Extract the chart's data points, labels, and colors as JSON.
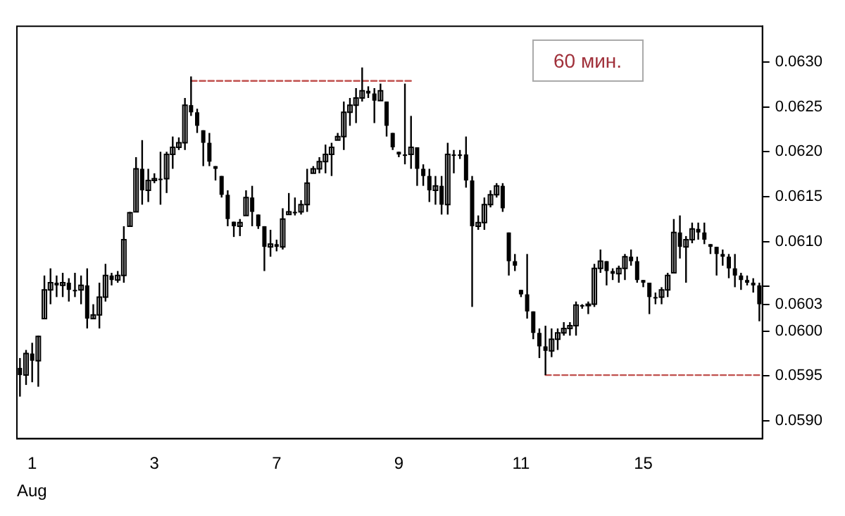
{
  "chart_data": {
    "type": "candlestick",
    "title": "60 мин.",
    "xlabel": "Aug",
    "color": "#000000",
    "categories": [
      null,
      null,
      "1",
      null,
      null,
      null,
      null,
      null,
      null,
      null,
      null,
      null,
      null,
      null,
      null,
      null,
      null,
      null,
      null,
      null,
      null,
      null,
      "3",
      null,
      null,
      null,
      null,
      null,
      null,
      null,
      null,
      null,
      null,
      null,
      null,
      null,
      null,
      null,
      null,
      null,
      null,
      null,
      "7",
      null,
      null,
      null,
      null,
      null,
      null,
      null,
      null,
      null,
      null,
      null,
      null,
      null,
      null,
      null,
      null,
      null,
      null,
      null,
      "9",
      null,
      null,
      null,
      null,
      null,
      null,
      null,
      null,
      null,
      null,
      null,
      null,
      null,
      null,
      null,
      null,
      null,
      null,
      null,
      "11",
      null,
      null,
      null,
      null,
      null,
      null,
      null,
      null,
      null,
      null,
      null,
      null,
      null,
      null,
      null,
      null,
      null,
      null,
      null,
      "15",
      null,
      null,
      null,
      null,
      null,
      null,
      null,
      null,
      null,
      null,
      null,
      null,
      null,
      null,
      null,
      null,
      null,
      null,
      null
    ],
    "ohlc": [
      [
        0.05959,
        0.0597,
        0.05927,
        0.05951
      ],
      [
        0.05951,
        0.05979,
        0.0594,
        0.05975
      ],
      [
        0.05975,
        0.05987,
        0.05943,
        0.05967
      ],
      [
        0.05967,
        0.05995,
        0.05938,
        0.05994
      ],
      [
        0.06014,
        0.06062,
        0.06014,
        0.06046
      ],
      [
        0.06046,
        0.0607,
        0.0603,
        0.06054
      ],
      [
        0.06054,
        0.06062,
        0.06038,
        0.06051
      ],
      [
        0.06051,
        0.06065,
        0.06038,
        0.06054
      ],
      [
        0.06054,
        0.06059,
        0.06033,
        0.06046
      ],
      [
        0.06046,
        0.06065,
        0.06038,
        0.06046
      ],
      [
        0.06046,
        0.06062,
        0.0603,
        0.06051
      ],
      [
        0.06051,
        0.0607,
        0.06003,
        0.06014
      ],
      [
        0.06014,
        0.0603,
        0.06014,
        0.06018
      ],
      [
        0.06018,
        0.06054,
        0.06003,
        0.06038
      ],
      [
        0.06038,
        0.06075,
        0.06033,
        0.06062
      ],
      [
        0.06062,
        0.06065,
        0.06051,
        0.06057
      ],
      [
        0.06057,
        0.06067,
        0.06054,
        0.06062
      ],
      [
        0.06062,
        0.06117,
        0.06054,
        0.06102
      ],
      [
        0.06117,
        0.06133,
        0.06117,
        0.06132
      ],
      [
        0.06133,
        0.06194,
        0.06133,
        0.06181
      ],
      [
        0.06181,
        0.06213,
        0.06141,
        0.06157
      ],
      [
        0.06157,
        0.06181,
        0.06144,
        0.06168
      ],
      [
        0.06168,
        0.06176,
        0.06165,
        0.0617
      ],
      [
        0.0617,
        0.062,
        0.06141,
        0.0617
      ],
      [
        0.0617,
        0.062,
        0.06154,
        0.06197
      ],
      [
        0.06197,
        0.06217,
        0.06181,
        0.06205
      ],
      [
        0.06205,
        0.06216,
        0.06202,
        0.0621
      ],
      [
        0.0621,
        0.0626,
        0.06202,
        0.06252
      ],
      [
        0.06252,
        0.06284,
        0.0624,
        0.06244
      ],
      [
        0.06244,
        0.06248,
        0.06221,
        0.06229
      ],
      [
        0.06224,
        0.06224,
        0.06184,
        0.0621
      ],
      [
        0.0621,
        0.06221,
        0.06184,
        0.06189
      ],
      [
        0.06184,
        0.06184,
        0.06168,
        0.06181
      ],
      [
        0.06173,
        0.06173,
        0.06149,
        0.06152
      ],
      [
        0.06152,
        0.06157,
        0.06117,
        0.06125
      ],
      [
        0.06122,
        0.06122,
        0.06105,
        0.06117
      ],
      [
        0.06117,
        0.06125,
        0.06106,
        0.06121
      ],
      [
        0.06129,
        0.06157,
        0.06129,
        0.06149
      ],
      [
        0.06149,
        0.06162,
        0.06117,
        0.06133
      ],
      [
        0.0613,
        0.0613,
        0.06114,
        0.06117
      ],
      [
        0.06117,
        0.06117,
        0.06067,
        0.06094
      ],
      [
        0.06094,
        0.06113,
        0.06083,
        0.06097
      ],
      [
        0.06097,
        0.06102,
        0.06089,
        0.06094
      ],
      [
        0.06094,
        0.06137,
        0.06091,
        0.06125
      ],
      [
        0.0613,
        0.06154,
        0.0613,
        0.06133
      ],
      [
        0.06133,
        0.06149,
        0.06129,
        0.06133
      ],
      [
        0.06133,
        0.06146,
        0.0613,
        0.06141
      ],
      [
        0.06141,
        0.06181,
        0.06133,
        0.06165
      ],
      [
        0.06176,
        0.06184,
        0.06176,
        0.06181
      ],
      [
        0.06181,
        0.06194,
        0.06176,
        0.06189
      ],
      [
        0.06189,
        0.06208,
        0.06176,
        0.06197
      ],
      [
        0.06197,
        0.0621,
        0.06173,
        0.06205
      ],
      [
        0.06213,
        0.06221,
        0.06213,
        0.06217
      ],
      [
        0.06217,
        0.06256,
        0.06202,
        0.06244
      ],
      [
        0.06244,
        0.0626,
        0.06229,
        0.06252
      ],
      [
        0.06252,
        0.06271,
        0.06232,
        0.0626
      ],
      [
        0.0626,
        0.06294,
        0.06256,
        0.06268
      ],
      [
        0.06268,
        0.06273,
        0.0626,
        0.06265
      ],
      [
        0.06265,
        0.06271,
        0.06232,
        0.06257
      ],
      [
        0.06257,
        0.06276,
        0.06257,
        0.06268
      ],
      [
        0.06256,
        0.06256,
        0.06217,
        0.06229
      ],
      [
        0.06221,
        0.06221,
        0.06202,
        0.06205
      ],
      [
        0.062,
        0.062,
        0.06194,
        0.06197
      ],
      [
        0.06197,
        0.06276,
        0.06186,
        0.06197
      ],
      [
        0.06197,
        0.0624,
        0.06181,
        0.06205
      ],
      [
        0.06205,
        0.06205,
        0.06162,
        0.06181
      ],
      [
        0.06181,
        0.06186,
        0.06162,
        0.06173
      ],
      [
        0.06173,
        0.06181,
        0.06144,
        0.06157
      ],
      [
        0.06157,
        0.06173,
        0.06141,
        0.06162
      ],
      [
        0.06162,
        0.06173,
        0.0613,
        0.06141
      ],
      [
        0.06141,
        0.0621,
        0.0613,
        0.06197
      ],
      [
        0.06197,
        0.06202,
        0.06176,
        0.06197
      ],
      [
        0.06197,
        0.06202,
        0.06192,
        0.06197
      ],
      [
        0.06197,
        0.06217,
        0.0616,
        0.06168
      ],
      [
        0.06168,
        0.06173,
        0.06027,
        0.06117
      ],
      [
        0.06117,
        0.06129,
        0.06113,
        0.06121
      ],
      [
        0.06121,
        0.06149,
        0.06113,
        0.06141
      ],
      [
        0.06141,
        0.06157,
        0.06138,
        0.06152
      ],
      [
        0.06152,
        0.06165,
        0.06149,
        0.06162
      ],
      [
        0.06162,
        0.06165,
        0.06133,
        0.06137
      ],
      [
        0.0611,
        0.0611,
        0.06062,
        0.06078
      ],
      [
        0.06078,
        0.06086,
        0.06067,
        0.06073
      ],
      [
        0.06046,
        0.06046,
        0.06038,
        0.06041
      ],
      [
        0.06041,
        0.06086,
        0.06014,
        0.06022
      ],
      [
        0.06022,
        0.06022,
        0.05991,
        0.05998
      ],
      [
        0.05998,
        0.06003,
        0.0597,
        0.05983
      ],
      [
        0.05983,
        0.06006,
        0.05951,
        0.05978
      ],
      [
        0.05978,
        0.06003,
        0.05971,
        0.05991
      ],
      [
        0.05991,
        0.06003,
        0.05979,
        0.05998
      ],
      [
        0.05998,
        0.0601,
        0.05995,
        0.06003
      ],
      [
        0.06003,
        0.0601,
        0.05995,
        0.06006
      ],
      [
        0.06006,
        0.06033,
        0.05995,
        0.06029
      ],
      [
        0.06029,
        0.0603,
        0.06025,
        0.06029
      ],
      [
        0.06029,
        0.06033,
        0.06019,
        0.0603
      ],
      [
        0.0603,
        0.06075,
        0.06027,
        0.0607
      ],
      [
        0.0607,
        0.06091,
        0.06065,
        0.06078
      ],
      [
        0.06078,
        0.06078,
        0.06051,
        0.06067
      ],
      [
        0.06067,
        0.0607,
        0.06057,
        0.06064
      ],
      [
        0.06064,
        0.06073,
        0.06054,
        0.0607
      ],
      [
        0.0607,
        0.06086,
        0.06057,
        0.06083
      ],
      [
        0.06083,
        0.06091,
        0.06073,
        0.06078
      ],
      [
        0.06078,
        0.06083,
        0.06054,
        0.06057
      ],
      [
        0.06057,
        0.06057,
        0.06049,
        0.06054
      ],
      [
        0.06054,
        0.06054,
        0.06019,
        0.06038
      ],
      [
        0.06038,
        0.06043,
        0.0603,
        0.06038
      ],
      [
        0.06038,
        0.06049,
        0.0603,
        0.06046
      ],
      [
        0.06046,
        0.06065,
        0.06038,
        0.06062
      ],
      [
        0.06065,
        0.06125,
        0.06065,
        0.0611
      ],
      [
        0.0611,
        0.06129,
        0.06081,
        0.06094
      ],
      [
        0.06094,
        0.06106,
        0.06054,
        0.06102
      ],
      [
        0.06102,
        0.06121,
        0.06098,
        0.06114
      ],
      [
        0.06114,
        0.06121,
        0.06102,
        0.0611
      ],
      [
        0.0611,
        0.06121,
        0.06097,
        0.06102
      ],
      [
        0.06097,
        0.06097,
        0.06086,
        0.06094
      ],
      [
        0.06094,
        0.06094,
        0.06062,
        0.06086
      ],
      [
        0.06086,
        0.06091,
        0.06073,
        0.06083
      ],
      [
        0.06083,
        0.06086,
        0.06059,
        0.0607
      ],
      [
        0.0607,
        0.06086,
        0.06049,
        0.06062
      ],
      [
        0.06062,
        0.06065,
        0.06046,
        0.06057
      ],
      [
        0.06057,
        0.06062,
        0.06051,
        0.06054
      ],
      [
        0.06054,
        0.06059,
        0.06043,
        0.06051
      ],
      [
        0.06051,
        0.06054,
        0.06011,
        0.0603
      ]
    ],
    "series": [
      {
        "type": "line",
        "color": "#c0504d",
        "line_style": "dashed",
        "marker": "none",
        "values": [
          null,
          null,
          null,
          null,
          null,
          null,
          null,
          null,
          null,
          null,
          null,
          null,
          null,
          null,
          null,
          null,
          null,
          null,
          null,
          null,
          null,
          null,
          null,
          null,
          null,
          null,
          null,
          null,
          0.06279,
          0.06279,
          0.06279,
          0.06279,
          0.06279,
          0.06279,
          0.06279,
          0.06279,
          0.06279,
          0.06279,
          0.06279,
          0.06279,
          0.06279,
          0.06279,
          0.06279,
          0.06279,
          0.06279,
          0.06279,
          0.06279,
          0.06279,
          0.06279,
          0.06279,
          0.06279,
          0.06279,
          0.06279,
          0.06279,
          0.06279,
          0.06279,
          0.06279,
          0.06279,
          0.06279,
          0.06279,
          0.06279,
          0.06279,
          0.06279,
          0.06279,
          0.06279,
          null,
          null,
          null,
          null,
          null,
          null,
          null,
          null,
          null,
          null,
          null,
          null,
          null,
          null,
          null,
          null,
          null,
          null,
          null,
          null,
          null,
          null,
          null,
          null,
          null,
          null,
          null,
          null,
          null,
          null,
          null,
          null,
          null,
          null,
          null,
          null,
          null,
          null,
          null,
          null,
          null,
          null,
          null,
          null,
          null,
          null,
          null,
          null,
          null,
          null,
          null,
          null,
          null,
          null,
          null,
          null,
          null
        ]
      },
      {
        "type": "line",
        "color": "#c0504d",
        "line_style": "dashed",
        "marker": "none",
        "values": [
          null,
          null,
          null,
          null,
          null,
          null,
          null,
          null,
          null,
          null,
          null,
          null,
          null,
          null,
          null,
          null,
          null,
          null,
          null,
          null,
          null,
          null,
          null,
          null,
          null,
          null,
          null,
          null,
          null,
          null,
          null,
          null,
          null,
          null,
          null,
          null,
          null,
          null,
          null,
          null,
          null,
          null,
          null,
          null,
          null,
          null,
          null,
          null,
          null,
          null,
          null,
          null,
          null,
          null,
          null,
          null,
          null,
          null,
          null,
          null,
          null,
          null,
          null,
          null,
          null,
          null,
          null,
          null,
          null,
          null,
          null,
          null,
          null,
          null,
          null,
          null,
          null,
          null,
          null,
          null,
          null,
          null,
          null,
          null,
          null,
          null,
          0.05951,
          0.05951,
          0.05951,
          0.05951,
          0.05951,
          0.05951,
          0.05951,
          0.05951,
          0.05951,
          0.05951,
          0.05951,
          0.05951,
          0.05951,
          0.05951,
          0.05951,
          0.05951,
          0.05951,
          0.05951,
          0.05951,
          0.05951,
          0.05951,
          0.05951,
          0.05951,
          0.05951,
          0.05951,
          0.05951,
          0.05951,
          0.05951,
          0.05951,
          0.05951,
          0.05951,
          0.05951,
          0.05951,
          0.05951,
          0.05951,
          0.05951
        ]
      }
    ],
    "ylim": [
      0.0588,
      0.0634
    ],
    "yticks": [
      {
        "value": 0.059,
        "label": "0.0590"
      },
      {
        "value": 0.0595,
        "label": "0.0595"
      },
      {
        "value": 0.06,
        "label": "0.0600"
      },
      {
        "value": 0.0603,
        "label": "0.0603"
      },
      {
        "value": 0.0605,
        "label": null
      },
      {
        "value": 0.061,
        "label": "0.0610"
      },
      {
        "value": 0.0615,
        "label": "0.0615"
      },
      {
        "value": 0.062,
        "label": "0.0620"
      },
      {
        "value": 0.0625,
        "label": "0.0625"
      },
      {
        "value": 0.063,
        "label": "0.0630"
      }
    ],
    "grid": false,
    "legend": false
  }
}
